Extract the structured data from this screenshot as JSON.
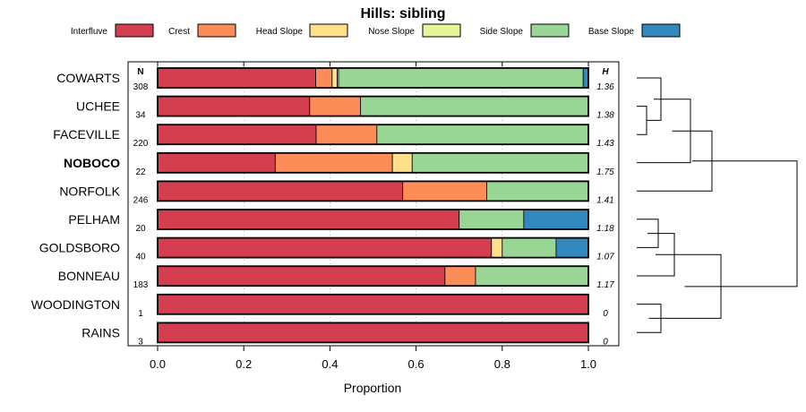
{
  "chart_data": {
    "type": "bar",
    "orientation": "horizontal",
    "stacked": true,
    "title": "Hills: sibling",
    "xlabel": "Proportion",
    "ylabel": "",
    "xlim": [
      0,
      1
    ],
    "x_ticks": [
      "0.0",
      "0.2",
      "0.4",
      "0.6",
      "0.8",
      "1.0"
    ],
    "x_tick_values": [
      0,
      0.2,
      0.4,
      0.6,
      0.8,
      1.0
    ],
    "legend_position": "top",
    "n_header": "N",
    "h_header": "H",
    "highlighted_category": "NOBOCO",
    "series": [
      {
        "name": "Interfluve",
        "color": "#d53e4f"
      },
      {
        "name": "Crest",
        "color": "#fc8d59"
      },
      {
        "name": "Head Slope",
        "color": "#fee08b"
      },
      {
        "name": "Nose Slope",
        "color": "#e6f598"
      },
      {
        "name": "Side Slope",
        "color": "#99d594"
      },
      {
        "name": "Base Slope",
        "color": "#3288bd"
      }
    ],
    "categories": [
      {
        "label": "COWARTS",
        "n": "308",
        "h": "1.36",
        "values": [
          0.367,
          0.038,
          0.012,
          0.003,
          0.568,
          0.012
        ]
      },
      {
        "label": "UCHEE",
        "n": "34",
        "h": "1.38",
        "values": [
          0.353,
          0.118,
          0.0,
          0.0,
          0.529,
          0.0
        ]
      },
      {
        "label": "FACEVILLE",
        "n": "220",
        "h": "1.43",
        "values": [
          0.368,
          0.141,
          0.0,
          0.0,
          0.491,
          0.0
        ]
      },
      {
        "label": "NOBOCO",
        "n": "22",
        "h": "1.75",
        "values": [
          0.273,
          0.272,
          0.046,
          0.0,
          0.409,
          0.0
        ]
      },
      {
        "label": "NORFOLK",
        "n": "246",
        "h": "1.41",
        "values": [
          0.569,
          0.195,
          0.0,
          0.0,
          0.236,
          0.0
        ]
      },
      {
        "label": "PELHAM",
        "n": "20",
        "h": "1.18",
        "values": [
          0.7,
          0.0,
          0.0,
          0.0,
          0.15,
          0.15
        ]
      },
      {
        "label": "GOLDSBORO",
        "n": "40",
        "h": "1.07",
        "values": [
          0.775,
          0.0,
          0.025,
          0.0,
          0.125,
          0.075
        ]
      },
      {
        "label": "BONNEAU",
        "n": "183",
        "h": "1.17",
        "values": [
          0.667,
          0.071,
          0.0,
          0.0,
          0.262,
          0.0
        ]
      },
      {
        "label": "WOODINGTON",
        "n": "1",
        "h": "0",
        "values": [
          1.0,
          0.0,
          0.0,
          0.0,
          0.0,
          0.0
        ]
      },
      {
        "label": "RAINS",
        "n": "3",
        "h": "0",
        "values": [
          1.0,
          0.0,
          0.0,
          0.0,
          0.0,
          0.0
        ]
      }
    ]
  }
}
